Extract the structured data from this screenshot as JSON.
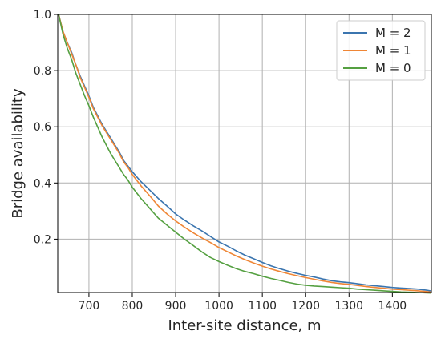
{
  "chart_data": {
    "type": "line",
    "xlabel": "Inter-site distance, m",
    "ylabel": "Bridge availability",
    "xlim": [
      628,
      1490
    ],
    "ylim": [
      0.01,
      1.0
    ],
    "grid": true,
    "legend_position": "top-right",
    "x_ticks": [
      700,
      800,
      900,
      1000,
      1100,
      1200,
      1300,
      1400
    ],
    "x_tick_labels": [
      "700",
      "800",
      "900",
      "1000",
      "1100",
      "1200",
      "1300",
      "1400"
    ],
    "y_ticks": [
      0.2,
      0.4,
      0.6,
      0.8,
      1.0
    ],
    "y_tick_labels": [
      "0.2",
      "0.4",
      "0.6",
      "0.8",
      "1.0"
    ],
    "series": [
      {
        "name": "M = 2",
        "color": "#3b75af",
        "x": [
          630,
          640,
          650,
          660,
          670,
          680,
          690,
          700,
          710,
          720,
          730,
          740,
          750,
          760,
          770,
          780,
          790,
          800,
          820,
          840,
          860,
          880,
          900,
          920,
          940,
          960,
          980,
          1000,
          1020,
          1040,
          1060,
          1080,
          1100,
          1120,
          1140,
          1160,
          1180,
          1200,
          1220,
          1240,
          1260,
          1280,
          1300,
          1320,
          1340,
          1360,
          1380,
          1400,
          1420,
          1440,
          1460,
          1480,
          1490
        ],
        "y": [
          1.0,
          0.94,
          0.9,
          0.865,
          0.82,
          0.78,
          0.745,
          0.71,
          0.67,
          0.64,
          0.61,
          0.585,
          0.56,
          0.535,
          0.51,
          0.48,
          0.46,
          0.44,
          0.405,
          0.375,
          0.345,
          0.318,
          0.29,
          0.268,
          0.248,
          0.23,
          0.21,
          0.19,
          0.175,
          0.158,
          0.143,
          0.13,
          0.117,
          0.105,
          0.095,
          0.086,
          0.078,
          0.071,
          0.065,
          0.058,
          0.052,
          0.048,
          0.045,
          0.041,
          0.037,
          0.034,
          0.031,
          0.028,
          0.026,
          0.024,
          0.022,
          0.018,
          0.015
        ]
      },
      {
        "name": "M = 1",
        "color": "#ef8636",
        "x": [
          630,
          640,
          650,
          660,
          670,
          680,
          690,
          700,
          710,
          720,
          730,
          740,
          750,
          760,
          770,
          780,
          790,
          800,
          820,
          840,
          860,
          880,
          900,
          920,
          940,
          960,
          980,
          1000,
          1020,
          1040,
          1060,
          1080,
          1100,
          1120,
          1140,
          1160,
          1180,
          1200,
          1220,
          1240,
          1260,
          1280,
          1300,
          1320,
          1340,
          1360,
          1380,
          1400,
          1420,
          1440,
          1460,
          1480,
          1490
        ],
        "y": [
          1.0,
          0.94,
          0.9,
          0.86,
          0.82,
          0.775,
          0.74,
          0.705,
          0.665,
          0.635,
          0.605,
          0.58,
          0.555,
          0.53,
          0.505,
          0.475,
          0.455,
          0.43,
          0.39,
          0.355,
          0.318,
          0.29,
          0.265,
          0.243,
          0.223,
          0.205,
          0.188,
          0.17,
          0.155,
          0.14,
          0.127,
          0.115,
          0.104,
          0.094,
          0.085,
          0.077,
          0.07,
          0.063,
          0.057,
          0.051,
          0.046,
          0.042,
          0.039,
          0.035,
          0.031,
          0.028,
          0.025,
          0.022,
          0.02,
          0.018,
          0.016,
          0.013,
          0.011
        ]
      },
      {
        "name": "M = 0",
        "color": "#55a041",
        "x": [
          630,
          640,
          650,
          660,
          670,
          680,
          690,
          700,
          710,
          720,
          730,
          740,
          750,
          760,
          770,
          780,
          790,
          800,
          820,
          840,
          860,
          880,
          900,
          920,
          940,
          960,
          980,
          1000,
          1020,
          1040,
          1060,
          1080,
          1100,
          1120,
          1140,
          1160,
          1180,
          1200,
          1220,
          1240,
          1260,
          1280,
          1300,
          1320,
          1340,
          1360,
          1380,
          1400,
          1420,
          1440,
          1460,
          1480,
          1490
        ],
        "y": [
          1.0,
          0.93,
          0.88,
          0.84,
          0.79,
          0.75,
          0.71,
          0.675,
          0.635,
          0.6,
          0.565,
          0.535,
          0.505,
          0.48,
          0.455,
          0.43,
          0.41,
          0.385,
          0.345,
          0.31,
          0.275,
          0.25,
          0.225,
          0.2,
          0.178,
          0.155,
          0.135,
          0.12,
          0.107,
          0.095,
          0.085,
          0.077,
          0.068,
          0.06,
          0.053,
          0.046,
          0.04,
          0.036,
          0.033,
          0.031,
          0.029,
          0.027,
          0.025,
          0.022,
          0.02,
          0.018,
          0.016,
          0.014,
          0.012,
          0.011,
          0.01,
          0.009,
          0.008
        ]
      }
    ]
  }
}
